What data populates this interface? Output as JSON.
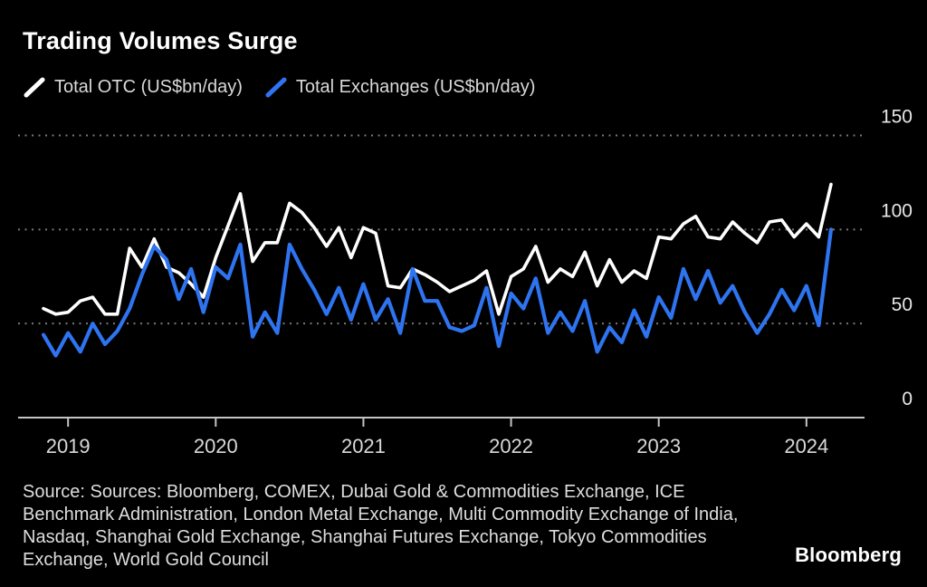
{
  "title": "Trading Volumes Surge",
  "legend": [
    {
      "label": "Total OTC (US$bn/day)",
      "color": "#ffffff"
    },
    {
      "label": "Total Exchanges (US$bn/day)",
      "color": "#2e74f0"
    }
  ],
  "source_text": "Source: Sources: Bloomberg, COMEX, Dubai Gold & Commodities Exchange, ICE Benchmark Administration, London Metal Exchange, Multi Commodity Exchange of India, Nasdaq, Shanghai Gold Exchange, Shanghai Futures Exchange, Tokyo Commodities Exchange, World Gold Council",
  "logo": "Bloomberg",
  "chart_data": {
    "type": "line",
    "title": "Trading Volumes Surge",
    "x_start": "2018-11",
    "x_end": "2024-03",
    "x_frequency": "monthly",
    "x_tick_labels": [
      "2019",
      "2020",
      "2021",
      "2022",
      "2023",
      "2024"
    ],
    "y_ticks": [
      0,
      50,
      100,
      150
    ],
    "ylim": [
      0,
      150
    ],
    "grid": "horizontal-dotted",
    "legend_position": "top-left",
    "colors": {
      "background": "#000000",
      "gridline": "#787878",
      "axis": "#c4c4c4",
      "tick_label": "#d9d9d9"
    },
    "series": [
      {
        "name": "Total OTC (US$bn/day)",
        "color": "#ffffff",
        "values": [
          58,
          55,
          56,
          62,
          64,
          55,
          55,
          90,
          80,
          95,
          80,
          77,
          71,
          64,
          85,
          102,
          119,
          83,
          93,
          93,
          114,
          109,
          101,
          91,
          101,
          85,
          101,
          98,
          70,
          69,
          79,
          76,
          72,
          67,
          70,
          73,
          78,
          55,
          75,
          79,
          91,
          72,
          79,
          75,
          88,
          70,
          84,
          72,
          78,
          74,
          96,
          95,
          103,
          107,
          96,
          95,
          104,
          98,
          93,
          104,
          105,
          96,
          103,
          96,
          124
        ]
      },
      {
        "name": "Total Exchanges (US$bn/day)",
        "color": "#2e74f0",
        "values": [
          44,
          33,
          45,
          35,
          50,
          39,
          46,
          58,
          76,
          91,
          84,
          63,
          79,
          56,
          80,
          74,
          92,
          43,
          56,
          45,
          92,
          79,
          68,
          55,
          69,
          52,
          71,
          52,
          63,
          45,
          79,
          62,
          62,
          48,
          46,
          49,
          69,
          38,
          66,
          58,
          74,
          45,
          56,
          46,
          62,
          35,
          48,
          40,
          57,
          43,
          64,
          53,
          79,
          63,
          78,
          61,
          70,
          56,
          45,
          55,
          68,
          57,
          70,
          49,
          100
        ]
      }
    ]
  }
}
